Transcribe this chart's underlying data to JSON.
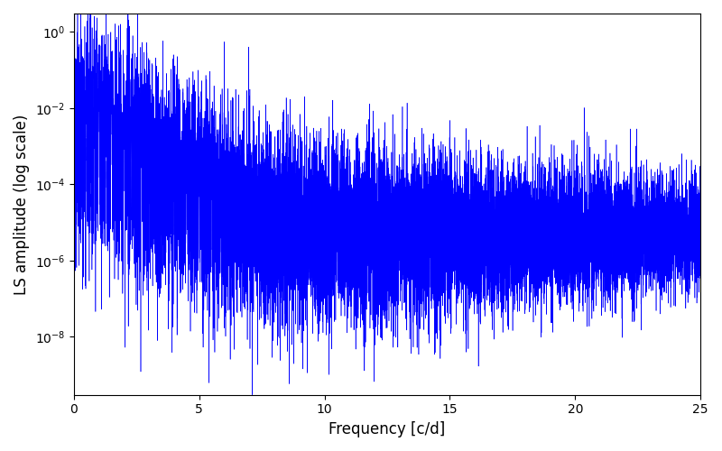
{
  "xlabel": "Frequency [c/d]",
  "ylabel": "LS amplitude (log scale)",
  "xlim": [
    0,
    25
  ],
  "ylim_log": [
    3e-10,
    3.0
  ],
  "line_color": "#0000ff",
  "background_color": "#ffffff",
  "freq_max": 25.0,
  "n_points": 15000,
  "seed": 12345
}
